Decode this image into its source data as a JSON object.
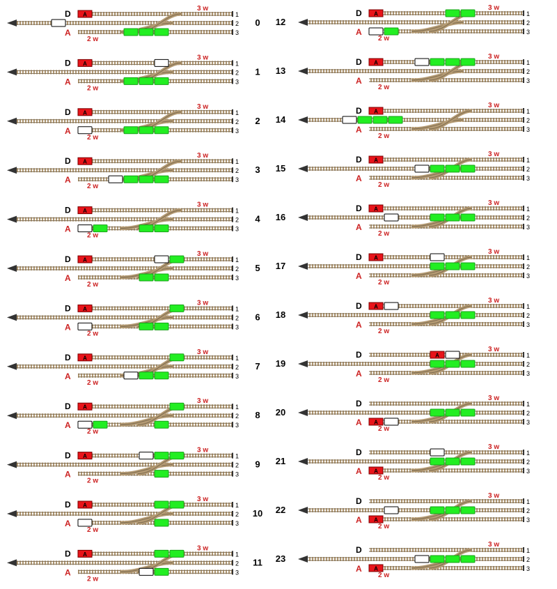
{
  "labels": {
    "departure": "D",
    "arrival": "A",
    "capacity_top": "3 w",
    "capacity_bottom": "2 w",
    "track_numbers": [
      "1",
      "2",
      "3"
    ],
    "engine_mark": "A"
  },
  "colors": {
    "rail": "#7b6a4f",
    "tie": "#b49a73",
    "engine": "#e8141a",
    "wagon_green": "#22ee22",
    "wagon_white": "#ffffff",
    "outline": "#000000",
    "label_red": "#cc2222",
    "text": "#000000"
  },
  "steps": [
    {
      "num": "0",
      "items": [
        {
          "t": "w",
          "track": "main",
          "slot": 0
        },
        {
          "t": "e",
          "track": "1",
          "slot": 0
        },
        {
          "t": "g",
          "track": "3",
          "slot": 3
        },
        {
          "t": "g",
          "track": "3",
          "slot": 4
        },
        {
          "t": "g",
          "track": "3",
          "slot": 5
        }
      ]
    },
    {
      "num": "1",
      "items": [
        {
          "t": "e",
          "track": "1",
          "slot": 0
        },
        {
          "t": "w",
          "track": "1",
          "slot": 5
        },
        {
          "t": "g",
          "track": "3",
          "slot": 3
        },
        {
          "t": "g",
          "track": "3",
          "slot": 4
        },
        {
          "t": "g",
          "track": "3",
          "slot": 5
        }
      ]
    },
    {
      "num": "2",
      "items": [
        {
          "t": "e",
          "track": "1",
          "slot": 0
        },
        {
          "t": "w",
          "track": "3",
          "slot": 0
        },
        {
          "t": "g",
          "track": "3",
          "slot": 3
        },
        {
          "t": "g",
          "track": "3",
          "slot": 4
        },
        {
          "t": "g",
          "track": "3",
          "slot": 5
        }
      ]
    },
    {
      "num": "3",
      "items": [
        {
          "t": "e",
          "track": "1",
          "slot": 0
        },
        {
          "t": "w",
          "track": "3",
          "slot": 2
        },
        {
          "t": "g",
          "track": "3",
          "slot": 3
        },
        {
          "t": "g",
          "track": "3",
          "slot": 4
        },
        {
          "t": "g",
          "track": "3",
          "slot": 5
        }
      ]
    },
    {
      "num": "4",
      "items": [
        {
          "t": "e",
          "track": "1",
          "slot": 0
        },
        {
          "t": "w",
          "track": "3",
          "slot": 0
        },
        {
          "t": "g",
          "track": "3",
          "slot": 1
        },
        {
          "t": "g",
          "track": "3",
          "slot": 4
        },
        {
          "t": "g",
          "track": "3",
          "slot": 5
        }
      ]
    },
    {
      "num": "5",
      "items": [
        {
          "t": "e",
          "track": "1",
          "slot": 0
        },
        {
          "t": "w",
          "track": "1",
          "slot": 5
        },
        {
          "t": "g",
          "track": "1",
          "slot": 6
        },
        {
          "t": "g",
          "track": "3",
          "slot": 4
        },
        {
          "t": "g",
          "track": "3",
          "slot": 5
        }
      ]
    },
    {
      "num": "6",
      "items": [
        {
          "t": "e",
          "track": "1",
          "slot": 0
        },
        {
          "t": "g",
          "track": "1",
          "slot": 6
        },
        {
          "t": "w",
          "track": "3",
          "slot": 0
        },
        {
          "t": "g",
          "track": "3",
          "slot": 4
        },
        {
          "t": "g",
          "track": "3",
          "slot": 5
        }
      ]
    },
    {
      "num": "7",
      "items": [
        {
          "t": "e",
          "track": "1",
          "slot": 0
        },
        {
          "t": "g",
          "track": "1",
          "slot": 6
        },
        {
          "t": "w",
          "track": "3",
          "slot": 3
        },
        {
          "t": "g",
          "track": "3",
          "slot": 4
        },
        {
          "t": "g",
          "track": "3",
          "slot": 5
        }
      ]
    },
    {
      "num": "8",
      "items": [
        {
          "t": "e",
          "track": "1",
          "slot": 0
        },
        {
          "t": "g",
          "track": "1",
          "slot": 6
        },
        {
          "t": "w",
          "track": "3",
          "slot": 0
        },
        {
          "t": "g",
          "track": "3",
          "slot": 1
        },
        {
          "t": "g",
          "track": "3",
          "slot": 5
        }
      ]
    },
    {
      "num": "9",
      "items": [
        {
          "t": "e",
          "track": "1",
          "slot": 0
        },
        {
          "t": "w",
          "track": "1",
          "slot": 4
        },
        {
          "t": "g",
          "track": "1",
          "slot": 5
        },
        {
          "t": "g",
          "track": "1",
          "slot": 6
        },
        {
          "t": "g",
          "track": "3",
          "slot": 5
        }
      ]
    },
    {
      "num": "10",
      "items": [
        {
          "t": "e",
          "track": "1",
          "slot": 0
        },
        {
          "t": "g",
          "track": "1",
          "slot": 5
        },
        {
          "t": "g",
          "track": "1",
          "slot": 6
        },
        {
          "t": "w",
          "track": "3",
          "slot": 0
        },
        {
          "t": "g",
          "track": "3",
          "slot": 5
        }
      ]
    },
    {
      "num": "11",
      "items": [
        {
          "t": "e",
          "track": "1",
          "slot": 0
        },
        {
          "t": "g",
          "track": "1",
          "slot": 5
        },
        {
          "t": "g",
          "track": "1",
          "slot": 6
        },
        {
          "t": "w",
          "track": "3",
          "slot": 4
        },
        {
          "t": "g",
          "track": "3",
          "slot": 5
        }
      ]
    },
    {
      "num": "12",
      "items": [
        {
          "t": "e",
          "track": "1",
          "slot": 0
        },
        {
          "t": "g",
          "track": "1",
          "slot": 5
        },
        {
          "t": "g",
          "track": "1",
          "slot": 6
        },
        {
          "t": "w",
          "track": "3",
          "slot": 0
        },
        {
          "t": "g",
          "track": "3",
          "slot": 1
        }
      ]
    },
    {
      "num": "13",
      "items": [
        {
          "t": "e",
          "track": "1",
          "slot": 0
        },
        {
          "t": "w",
          "track": "1",
          "slot": 3
        },
        {
          "t": "g",
          "track": "1",
          "slot": 4
        },
        {
          "t": "g",
          "track": "1",
          "slot": 5
        },
        {
          "t": "g",
          "track": "1",
          "slot": 6
        }
      ]
    },
    {
      "num": "14",
      "items": [
        {
          "t": "w",
          "track": "main",
          "slot": 0
        },
        {
          "t": "g",
          "track": "main",
          "slot": 1
        },
        {
          "t": "g",
          "track": "main",
          "slot": 2
        },
        {
          "t": "g",
          "track": "main",
          "slot": 3
        },
        {
          "t": "e",
          "track": "1",
          "slot": 0
        }
      ]
    },
    {
      "num": "15",
      "items": [
        {
          "t": "e",
          "track": "1",
          "slot": 0
        },
        {
          "t": "w",
          "track": "2",
          "slot": 3
        },
        {
          "t": "g",
          "track": "2",
          "slot": 4
        },
        {
          "t": "g",
          "track": "2",
          "slot": 5
        },
        {
          "t": "g",
          "track": "2",
          "slot": 6
        }
      ]
    },
    {
      "num": "16",
      "items": [
        {
          "t": "e",
          "track": "1",
          "slot": 0
        },
        {
          "t": "w",
          "track": "2",
          "slot": 1
        },
        {
          "t": "g",
          "track": "2",
          "slot": 4
        },
        {
          "t": "g",
          "track": "2",
          "slot": 5
        },
        {
          "t": "g",
          "track": "2",
          "slot": 6
        }
      ]
    },
    {
      "num": "17",
      "items": [
        {
          "t": "e",
          "track": "1",
          "slot": 0
        },
        {
          "t": "w",
          "track": "1",
          "slot": 4
        },
        {
          "t": "g",
          "track": "2",
          "slot": 4
        },
        {
          "t": "g",
          "track": "2",
          "slot": 5
        },
        {
          "t": "g",
          "track": "2",
          "slot": 6
        }
      ]
    },
    {
      "num": "18",
      "items": [
        {
          "t": "e",
          "track": "1",
          "slot": 0
        },
        {
          "t": "w",
          "track": "1",
          "slot": 1
        },
        {
          "t": "g",
          "track": "2",
          "slot": 4
        },
        {
          "t": "g",
          "track": "2",
          "slot": 5
        },
        {
          "t": "g",
          "track": "2",
          "slot": 6
        }
      ]
    },
    {
      "num": "19",
      "items": [
        {
          "t": "e",
          "track": "1",
          "slot": 4
        },
        {
          "t": "w",
          "track": "1",
          "slot": 5
        },
        {
          "t": "g",
          "track": "2",
          "slot": 4
        },
        {
          "t": "g",
          "track": "2",
          "slot": 5
        },
        {
          "t": "g",
          "track": "2",
          "slot": 6
        }
      ]
    },
    {
      "num": "20",
      "items": [
        {
          "t": "e",
          "track": "3",
          "slot": 0
        },
        {
          "t": "w",
          "track": "3",
          "slot": 1
        },
        {
          "t": "g",
          "track": "2",
          "slot": 4
        },
        {
          "t": "g",
          "track": "2",
          "slot": 5
        },
        {
          "t": "g",
          "track": "2",
          "slot": 6
        }
      ]
    },
    {
      "num": "21",
      "items": [
        {
          "t": "w",
          "track": "1",
          "slot": 4
        },
        {
          "t": "g",
          "track": "2",
          "slot": 4
        },
        {
          "t": "g",
          "track": "2",
          "slot": 5
        },
        {
          "t": "g",
          "track": "2",
          "slot": 6
        },
        {
          "t": "e",
          "track": "3",
          "slot": 0
        }
      ]
    },
    {
      "num": "22",
      "items": [
        {
          "t": "w",
          "track": "2",
          "slot": 1
        },
        {
          "t": "g",
          "track": "2",
          "slot": 4
        },
        {
          "t": "g",
          "track": "2",
          "slot": 5
        },
        {
          "t": "g",
          "track": "2",
          "slot": 6
        },
        {
          "t": "e",
          "track": "3",
          "slot": 0
        }
      ]
    },
    {
      "num": "23",
      "items": [
        {
          "t": "w",
          "track": "2",
          "slot": 3
        },
        {
          "t": "g",
          "track": "2",
          "slot": 4
        },
        {
          "t": "g",
          "track": "2",
          "slot": 5
        },
        {
          "t": "g",
          "track": "2",
          "slot": 6
        },
        {
          "t": "e",
          "track": "3",
          "slot": 0
        }
      ]
    }
  ]
}
